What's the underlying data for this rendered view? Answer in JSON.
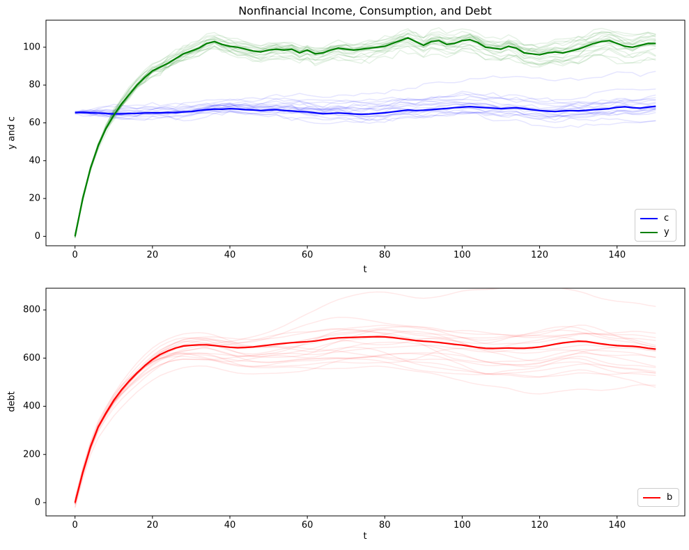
{
  "figure": {
    "title": "Nonfinancial Income, Consumption, and Debt",
    "background": "#ffffff"
  },
  "chart_data": [
    {
      "type": "line",
      "subplot": "top",
      "title": "Nonfinancial Income, Consumption, and Debt",
      "xlabel": "t",
      "ylabel": "y and c",
      "xlim": [
        -7.5,
        157.5
      ],
      "ylim": [
        -5,
        114.3
      ],
      "xticks": [
        0,
        20,
        40,
        60,
        80,
        100,
        120,
        140
      ],
      "yticks": [
        0,
        20,
        40,
        60,
        80,
        100
      ],
      "grid": false,
      "legend": {
        "position": "lower right",
        "entries": [
          {
            "label": "c",
            "color": "#0000ff"
          },
          {
            "label": "y",
            "color": "#008000"
          }
        ]
      },
      "x_start": 0,
      "x_step": 2,
      "series": [
        {
          "name": "c",
          "color": "#0000ff",
          "linewidth": 2.2,
          "values": [
            65.5,
            65.5,
            65.3,
            65.2,
            65.0,
            64.7,
            64.8,
            64.9,
            65.0,
            65.2,
            65.3,
            65.3,
            65.5,
            65.4,
            65.8,
            66.0,
            66.5,
            67.0,
            67.3,
            67.2,
            67.5,
            67.3,
            67.0,
            66.8,
            66.5,
            66.8,
            67.0,
            66.5,
            66.3,
            66.0,
            65.8,
            65.3,
            64.8,
            65.0,
            65.2,
            65.0,
            64.7,
            64.5,
            64.7,
            65.0,
            65.3,
            65.8,
            66.3,
            66.8,
            66.5,
            66.7,
            67.0,
            67.3,
            67.6,
            68.0,
            68.3,
            68.6,
            68.3,
            68.0,
            67.8,
            67.5,
            67.8,
            68.0,
            67.5,
            67.0,
            66.5,
            66.2,
            66.0,
            66.3,
            66.5,
            66.4,
            66.6,
            67.0,
            67.2,
            67.5,
            68.2,
            68.5,
            68.0,
            67.8,
            68.3,
            68.8
          ]
        },
        {
          "name": "y",
          "color": "#008000",
          "linewidth": 2.2,
          "values": [
            0,
            20,
            36,
            48,
            57,
            64,
            70,
            75,
            80,
            84,
            87.5,
            89.5,
            91.5,
            94,
            96.5,
            98,
            99.5,
            102,
            103,
            101.5,
            100.5,
            100,
            99,
            98,
            97.5,
            98.5,
            99,
            98.5,
            99,
            97,
            98.5,
            96.5,
            97,
            98.5,
            99.5,
            99,
            98.5,
            99,
            99.5,
            100,
            100.5,
            102,
            103.5,
            105,
            103,
            101,
            103,
            103.5,
            101.5,
            102,
            103.5,
            104,
            102.5,
            100,
            99.5,
            99,
            100.5,
            99.5,
            97,
            96.5,
            96,
            97,
            97.5,
            97,
            98,
            99,
            100.5,
            102,
            103,
            103.5,
            102,
            100.5,
            100,
            101,
            102,
            102
          ]
        }
      ],
      "ensemble": {
        "n_paths": 20,
        "alpha": 0.1,
        "linewidth": 1.5,
        "seed_note": "faint background simulation paths around each mean",
        "per_series": [
          {
            "name": "c",
            "walk_sigma": 0.6,
            "jitter_sigma": 0.45,
            "smooth_passes": 0
          },
          {
            "name": "y",
            "walk_sigma": 0.55,
            "jitter_sigma": 0.7,
            "smooth_passes": 0
          }
        ]
      }
    },
    {
      "type": "line",
      "subplot": "bottom",
      "title": "",
      "xlabel": "t",
      "ylabel": "debt",
      "xlim": [
        -7.5,
        157.5
      ],
      "ylim": [
        -55,
        890
      ],
      "xticks": [
        0,
        20,
        40,
        60,
        80,
        100,
        120,
        140
      ],
      "yticks": [
        0,
        200,
        400,
        600,
        800
      ],
      "grid": false,
      "legend": {
        "position": "lower right",
        "entries": [
          {
            "label": "b",
            "color": "#ff0000"
          }
        ]
      },
      "x_start": 0,
      "x_step": 2,
      "series": [
        {
          "name": "b",
          "color": "#ff0000",
          "linewidth": 2.2,
          "values": [
            0,
            125,
            232,
            315,
            372,
            425,
            468,
            505,
            538,
            568,
            594,
            615,
            630,
            642,
            650,
            653,
            655,
            655,
            652,
            648,
            645,
            643,
            644,
            646,
            650,
            654,
            658,
            661,
            664,
            666,
            668,
            671,
            676,
            681,
            684,
            685,
            686,
            687,
            688,
            689,
            688,
            685,
            681,
            677,
            673,
            670,
            668,
            665,
            661,
            657,
            654,
            649,
            644,
            641,
            640,
            641,
            642,
            641,
            641,
            643,
            646,
            652,
            658,
            663,
            667,
            670,
            669,
            664,
            659,
            655,
            652,
            650,
            649,
            646,
            641,
            637
          ]
        }
      ],
      "ensemble": {
        "n_paths": 20,
        "alpha": 0.09,
        "linewidth": 1.5,
        "per_series": [
          {
            "name": "b",
            "walk_sigma": 12,
            "jitter_sigma": 0,
            "smooth_passes": 2
          }
        ]
      }
    }
  ],
  "style": {
    "spine_color": "#000000",
    "tick_color": "#000000",
    "tick_length": 4,
    "tick_font_px": 13,
    "text_color": "#000000"
  }
}
